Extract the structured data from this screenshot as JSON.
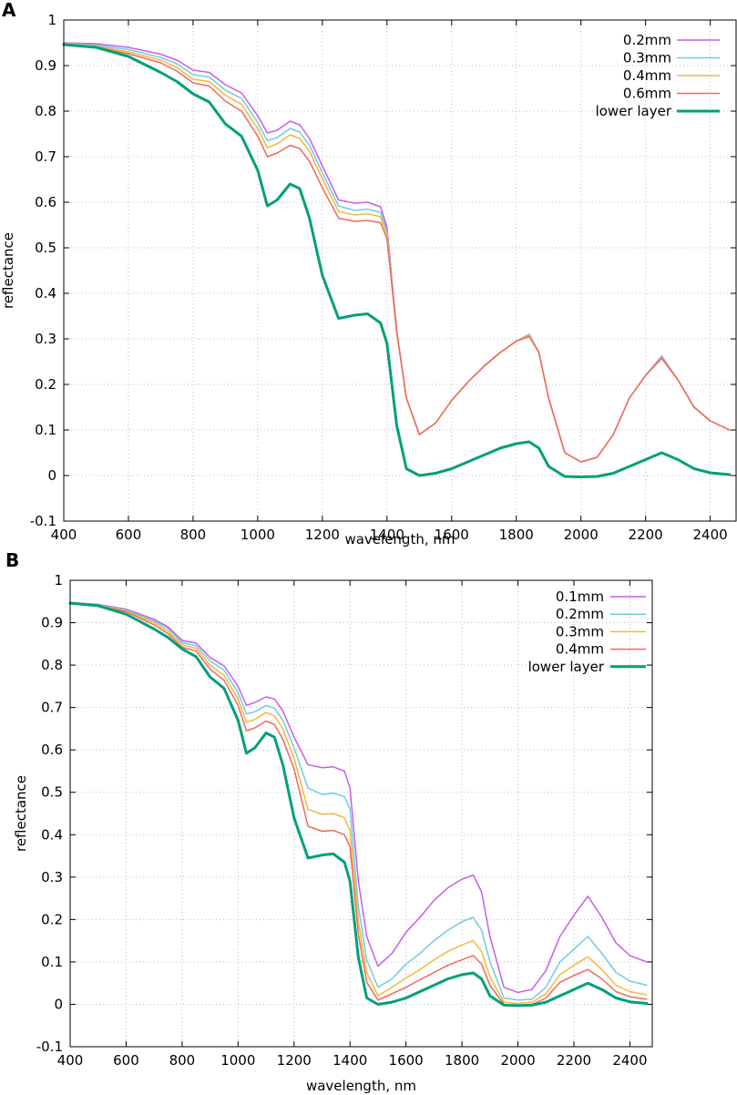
{
  "chart_data": [
    {
      "panel": "A",
      "type": "line",
      "title": "",
      "xlabel": "wavelength, nm",
      "ylabel": "reflectance",
      "xlim": [
        400,
        2480
      ],
      "ylim": [
        -0.1,
        1
      ],
      "xticks": [
        400,
        600,
        800,
        1000,
        1200,
        1400,
        1600,
        1800,
        2000,
        2200,
        2400
      ],
      "xtick_labels": [
        "400",
        "600",
        "800",
        "1000",
        "1200",
        "1400",
        "1600",
        "1800",
        "2000",
        "2200",
        "2400"
      ],
      "yticks": [
        -0.1,
        0,
        0.1,
        0.2,
        0.3,
        0.4,
        0.5,
        0.6,
        0.7,
        0.8,
        0.9,
        1
      ],
      "ytick_labels": [
        "-0.1",
        "0",
        "0.1",
        "0.2",
        "0.3",
        "0.4",
        "0.5",
        "0.6",
        "0.7",
        "0.8",
        "0.9",
        "1"
      ],
      "grid": true,
      "legend_position": "top-right",
      "x": [
        400,
        500,
        600,
        700,
        750,
        800,
        850,
        900,
        950,
        1000,
        1030,
        1060,
        1100,
        1130,
        1160,
        1200,
        1250,
        1300,
        1340,
        1380,
        1400,
        1430,
        1460,
        1500,
        1550,
        1600,
        1650,
        1700,
        1750,
        1800,
        1840,
        1870,
        1900,
        1950,
        2000,
        2050,
        2100,
        2150,
        2200,
        2250,
        2300,
        2350,
        2400,
        2460
      ],
      "series": [
        {
          "name": "0.2mm",
          "color": "#c65ee8",
          "width": 1.5,
          "values": [
            0.95,
            0.948,
            0.94,
            0.925,
            0.912,
            0.89,
            0.885,
            0.858,
            0.84,
            0.79,
            0.752,
            0.758,
            0.778,
            0.77,
            0.74,
            0.68,
            0.605,
            0.598,
            0.6,
            0.59,
            0.545,
            0.32,
            0.17,
            0.09,
            0.115,
            0.165,
            0.205,
            0.24,
            0.27,
            0.295,
            0.31,
            0.27,
            0.17,
            0.05,
            0.03,
            0.04,
            0.09,
            0.17,
            0.22,
            0.262,
            0.21,
            0.15,
            0.12,
            0.1
          ]
        },
        {
          "name": "0.3mm",
          "color": "#6fcbe8",
          "width": 1.5,
          "values": [
            0.949,
            0.945,
            0.935,
            0.918,
            0.904,
            0.88,
            0.875,
            0.846,
            0.828,
            0.775,
            0.735,
            0.742,
            0.762,
            0.754,
            0.725,
            0.665,
            0.592,
            0.582,
            0.585,
            0.578,
            0.535,
            0.318,
            0.17,
            0.09,
            0.115,
            0.165,
            0.205,
            0.24,
            0.27,
            0.295,
            0.309,
            0.27,
            0.17,
            0.05,
            0.03,
            0.04,
            0.09,
            0.17,
            0.22,
            0.26,
            0.21,
            0.15,
            0.12,
            0.1
          ]
        },
        {
          "name": "0.4mm",
          "color": "#f2b93c",
          "width": 1.5,
          "values": [
            0.948,
            0.943,
            0.93,
            0.912,
            0.896,
            0.87,
            0.865,
            0.835,
            0.815,
            0.762,
            0.72,
            0.728,
            0.748,
            0.74,
            0.712,
            0.652,
            0.58,
            0.572,
            0.575,
            0.568,
            0.528,
            0.316,
            0.17,
            0.09,
            0.115,
            0.165,
            0.205,
            0.24,
            0.27,
            0.295,
            0.307,
            0.27,
            0.17,
            0.05,
            0.03,
            0.04,
            0.09,
            0.17,
            0.22,
            0.258,
            0.21,
            0.15,
            0.12,
            0.1
          ]
        },
        {
          "name": "0.6mm",
          "color": "#ee6a5a",
          "width": 1.5,
          "values": [
            0.947,
            0.941,
            0.926,
            0.906,
            0.888,
            0.862,
            0.855,
            0.822,
            0.8,
            0.745,
            0.7,
            0.708,
            0.725,
            0.718,
            0.69,
            0.632,
            0.565,
            0.558,
            0.56,
            0.555,
            0.52,
            0.314,
            0.17,
            0.09,
            0.115,
            0.165,
            0.205,
            0.24,
            0.27,
            0.295,
            0.305,
            0.27,
            0.17,
            0.05,
            0.03,
            0.04,
            0.09,
            0.17,
            0.22,
            0.257,
            0.21,
            0.15,
            0.12,
            0.1
          ]
        },
        {
          "name": "lower layer",
          "color": "#00a07a",
          "width": 3,
          "values": [
            0.946,
            0.94,
            0.92,
            0.885,
            0.865,
            0.838,
            0.82,
            0.772,
            0.745,
            0.67,
            0.592,
            0.605,
            0.64,
            0.63,
            0.565,
            0.44,
            0.345,
            0.352,
            0.355,
            0.335,
            0.29,
            0.11,
            0.015,
            0.0,
            0.005,
            0.015,
            0.03,
            0.045,
            0.06,
            0.07,
            0.074,
            0.06,
            0.02,
            -0.002,
            -0.003,
            -0.002,
            0.005,
            0.02,
            0.035,
            0.05,
            0.035,
            0.015,
            0.006,
            0.002
          ]
        }
      ]
    },
    {
      "panel": "B",
      "type": "line",
      "title": "",
      "xlabel": "wavelength, nm",
      "ylabel": "reflectance",
      "xlim": [
        400,
        2480
      ],
      "ylim": [
        -0.1,
        1
      ],
      "xticks": [
        400,
        600,
        800,
        1000,
        1200,
        1400,
        1600,
        1800,
        2000,
        2200,
        2400
      ],
      "xtick_labels": [
        "400",
        "600",
        "800",
        "1000",
        "1200",
        "1400",
        "1600",
        "1800",
        "2000",
        "2200",
        "2400"
      ],
      "yticks": [
        -0.1,
        0,
        0.1,
        0.2,
        0.3,
        0.4,
        0.5,
        0.6,
        0.7,
        0.8,
        0.9,
        1
      ],
      "ytick_labels": [
        "-0.1",
        "0",
        "0.1",
        "0.2",
        "0.3",
        "0.4",
        "0.5",
        "0.6",
        "0.7",
        "0.8",
        "0.9",
        "1"
      ],
      "grid": true,
      "legend_position": "top-right",
      "x": [
        400,
        500,
        600,
        700,
        750,
        800,
        850,
        900,
        950,
        1000,
        1030,
        1060,
        1100,
        1130,
        1160,
        1200,
        1250,
        1300,
        1340,
        1380,
        1400,
        1430,
        1460,
        1500,
        1550,
        1600,
        1650,
        1700,
        1750,
        1800,
        1840,
        1870,
        1900,
        1950,
        2000,
        2050,
        2100,
        2150,
        2200,
        2250,
        2300,
        2350,
        2400,
        2460
      ],
      "series": [
        {
          "name": "0.1mm",
          "color": "#c65ee8",
          "width": 1.5,
          "values": [
            0.948,
            0.943,
            0.932,
            0.908,
            0.89,
            0.858,
            0.852,
            0.818,
            0.798,
            0.75,
            0.705,
            0.712,
            0.725,
            0.72,
            0.692,
            0.63,
            0.565,
            0.558,
            0.56,
            0.55,
            0.51,
            0.29,
            0.16,
            0.09,
            0.12,
            0.17,
            0.205,
            0.245,
            0.275,
            0.295,
            0.305,
            0.265,
            0.16,
            0.04,
            0.028,
            0.035,
            0.08,
            0.16,
            0.21,
            0.255,
            0.205,
            0.145,
            0.115,
            0.1
          ]
        },
        {
          "name": "0.2mm",
          "color": "#6fcbe8",
          "width": 1.5,
          "values": [
            0.948,
            0.942,
            0.93,
            0.904,
            0.886,
            0.853,
            0.846,
            0.81,
            0.788,
            0.735,
            0.685,
            0.69,
            0.705,
            0.698,
            0.67,
            0.605,
            0.51,
            0.495,
            0.498,
            0.49,
            0.46,
            0.23,
            0.105,
            0.04,
            0.06,
            0.095,
            0.12,
            0.15,
            0.175,
            0.195,
            0.205,
            0.175,
            0.1,
            0.015,
            0.01,
            0.012,
            0.04,
            0.1,
            0.13,
            0.16,
            0.12,
            0.075,
            0.055,
            0.045
          ]
        },
        {
          "name": "0.3mm",
          "color": "#f2b93c",
          "width": 1.5,
          "values": [
            0.948,
            0.941,
            0.928,
            0.9,
            0.88,
            0.848,
            0.84,
            0.8,
            0.776,
            0.72,
            0.665,
            0.672,
            0.688,
            0.68,
            0.65,
            0.58,
            0.46,
            0.448,
            0.45,
            0.44,
            0.41,
            0.195,
            0.075,
            0.02,
            0.04,
            0.062,
            0.082,
            0.105,
            0.125,
            0.14,
            0.15,
            0.125,
            0.065,
            0.005,
            0.002,
            0.005,
            0.025,
            0.07,
            0.092,
            0.112,
            0.082,
            0.045,
            0.03,
            0.022
          ]
        },
        {
          "name": "0.4mm",
          "color": "#ee6a5a",
          "width": 1.5,
          "values": [
            0.947,
            0.94,
            0.926,
            0.895,
            0.874,
            0.842,
            0.833,
            0.79,
            0.764,
            0.705,
            0.645,
            0.652,
            0.668,
            0.66,
            0.625,
            0.555,
            0.42,
            0.408,
            0.41,
            0.4,
            0.372,
            0.165,
            0.052,
            0.01,
            0.025,
            0.04,
            0.058,
            0.075,
            0.092,
            0.105,
            0.115,
            0.095,
            0.045,
            0.0,
            -0.002,
            0.0,
            0.015,
            0.052,
            0.068,
            0.082,
            0.06,
            0.03,
            0.018,
            0.012
          ]
        },
        {
          "name": "lower layer",
          "color": "#00a07a",
          "width": 3,
          "values": [
            0.946,
            0.94,
            0.92,
            0.885,
            0.865,
            0.838,
            0.82,
            0.772,
            0.745,
            0.67,
            0.592,
            0.605,
            0.64,
            0.63,
            0.565,
            0.44,
            0.345,
            0.352,
            0.355,
            0.335,
            0.29,
            0.11,
            0.015,
            0.0,
            0.005,
            0.015,
            0.03,
            0.045,
            0.06,
            0.07,
            0.074,
            0.06,
            0.02,
            -0.002,
            -0.003,
            -0.002,
            0.005,
            0.02,
            0.035,
            0.05,
            0.035,
            0.015,
            0.006,
            0.002
          ]
        }
      ]
    }
  ]
}
